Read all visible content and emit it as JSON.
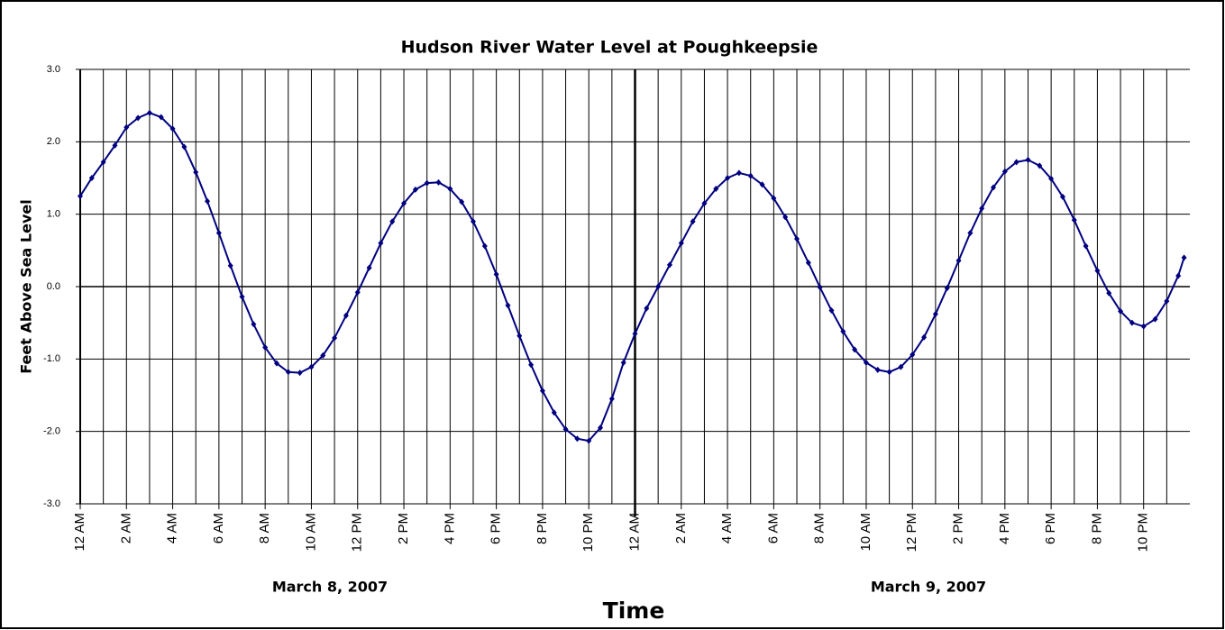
{
  "chart_data": {
    "type": "line",
    "title": "Hudson River Water Level at Poughkeepsie",
    "y_label": "Feet Above Sea Level",
    "x_label": "Time",
    "date_labels": [
      "March 8, 2007",
      "March 9, 2007"
    ],
    "day_boundaries": [
      24
    ],
    "xlim": [
      0,
      48
    ],
    "ylim": [
      -3,
      3
    ],
    "yticks": [
      {
        "value": -3,
        "label": "-3.0"
      },
      {
        "value": -2,
        "label": "-2.0"
      },
      {
        "value": -1,
        "label": "-1.0"
      },
      {
        "value": 0,
        "label": "0.0"
      },
      {
        "value": 1,
        "label": "1.0"
      },
      {
        "value": 2,
        "label": "2.0"
      },
      {
        "value": 3,
        "label": "3.0"
      }
    ],
    "xticks": [
      {
        "value": 0,
        "label": "12 AM"
      },
      {
        "value": 2,
        "label": "2 AM"
      },
      {
        "value": 4,
        "label": "4 AM"
      },
      {
        "value": 6,
        "label": "6 AM"
      },
      {
        "value": 8,
        "label": "8 AM"
      },
      {
        "value": 10,
        "label": "10 AM"
      },
      {
        "value": 12,
        "label": "12 PM"
      },
      {
        "value": 14,
        "label": "2 PM"
      },
      {
        "value": 16,
        "label": "4 PM"
      },
      {
        "value": 18,
        "label": "6 PM"
      },
      {
        "value": 20,
        "label": "8 PM"
      },
      {
        "value": 22,
        "label": "10 PM"
      },
      {
        "value": 24,
        "label": "12 AM"
      },
      {
        "value": 26,
        "label": "2 AM"
      },
      {
        "value": 28,
        "label": "4 AM"
      },
      {
        "value": 30,
        "label": "6 AM"
      },
      {
        "value": 32,
        "label": "8 AM"
      },
      {
        "value": 34,
        "label": "10 AM"
      },
      {
        "value": 36,
        "label": "12 PM"
      },
      {
        "value": 38,
        "label": "2 PM"
      },
      {
        "value": 40,
        "label": "4 PM"
      },
      {
        "value": 42,
        "label": "6 PM"
      },
      {
        "value": 44,
        "label": "8 PM"
      },
      {
        "value": 46,
        "label": "10 PM"
      }
    ],
    "xminorticks": [
      1,
      3,
      5,
      7,
      9,
      11,
      13,
      15,
      17,
      19,
      21,
      23,
      25,
      27,
      29,
      31,
      33,
      35,
      37,
      39,
      41,
      43,
      45,
      47
    ],
    "grid": true,
    "series": [
      {
        "color": "#000080",
        "x": [
          0,
          0.5,
          1,
          1.5,
          2,
          2.5,
          3,
          3.5,
          4,
          4.5,
          5,
          5.5,
          6,
          6.5,
          7,
          7.5,
          8,
          8.5,
          9,
          9.5,
          10,
          10.5,
          11,
          11.5,
          12,
          12.5,
          13,
          13.5,
          14,
          14.5,
          15,
          15.5,
          16,
          16.5,
          17,
          17.5,
          18,
          18.5,
          19,
          19.5,
          20,
          20.5,
          21,
          21.5,
          22,
          22.5,
          23,
          23.5,
          24,
          24.5,
          25,
          25.5,
          26,
          26.5,
          27,
          27.5,
          28,
          28.5,
          29,
          29.5,
          30,
          30.5,
          31,
          31.5,
          32,
          32.5,
          33,
          33.5,
          34,
          34.5,
          35,
          35.5,
          36,
          36.5,
          37,
          37.5,
          38,
          38.5,
          39,
          39.5,
          40,
          40.5,
          41,
          41.5,
          42,
          42.5,
          43,
          43.5,
          44,
          44.5,
          45,
          45.5,
          46,
          46.5,
          47,
          47.5,
          47.75
        ],
        "values": [
          1.25,
          1.5,
          1.72,
          1.95,
          2.2,
          2.33,
          2.4,
          2.34,
          2.18,
          1.93,
          1.58,
          1.18,
          0.74,
          0.29,
          -0.14,
          -0.52,
          -0.84,
          -1.06,
          -1.18,
          -1.19,
          -1.11,
          -0.95,
          -0.71,
          -0.4,
          -0.08,
          0.26,
          0.6,
          0.9,
          1.15,
          1.34,
          1.43,
          1.44,
          1.35,
          1.17,
          0.9,
          0.56,
          0.17,
          -0.26,
          -0.68,
          -1.08,
          -1.44,
          -1.74,
          -1.97,
          -2.1,
          -2.13,
          -1.95,
          -1.55,
          -1.05,
          -0.65,
          -0.3,
          0,
          0.3,
          0.6,
          0.9,
          1.15,
          1.35,
          1.5,
          1.57,
          1.53,
          1.41,
          1.22,
          0.96,
          0.66,
          0.33,
          -0.01,
          -0.33,
          -0.62,
          -0.87,
          -1.05,
          -1.15,
          -1.18,
          -1.11,
          -0.94,
          -0.7,
          -0.38,
          -0.02,
          0.36,
          0.74,
          1.08,
          1.37,
          1.59,
          1.72,
          1.75,
          1.67,
          1.49,
          1.24,
          0.92,
          0.56,
          0.22,
          -0.09,
          -0.34,
          -0.5,
          -0.55,
          -0.45,
          -0.2,
          0.15,
          0.4
        ]
      }
    ]
  }
}
